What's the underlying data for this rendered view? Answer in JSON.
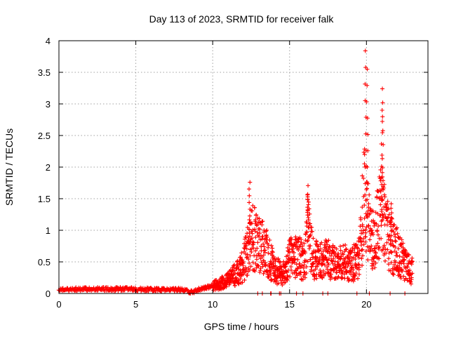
{
  "chart_data": {
    "type": "scatter",
    "title": "Day 113 of 2023, SRMTID for receiver falk",
    "xlabel": "GPS time / hours",
    "ylabel": "SRMTID / TECUs",
    "xlim": [
      0,
      24
    ],
    "ylim": [
      0,
      4
    ],
    "xticks": [
      0,
      5,
      10,
      15,
      20
    ],
    "yticks": [
      0,
      0.5,
      1,
      1.5,
      2,
      2.5,
      3,
      3.5,
      4
    ],
    "xtick_labels": [
      "0",
      "5",
      "10",
      "15",
      "20"
    ],
    "ytick_labels": [
      "0",
      "0.5",
      "1",
      "1.5",
      "2",
      "2.5",
      "3",
      "3.5",
      "4"
    ],
    "grid": true,
    "marker": "+",
    "color": "#ff0000",
    "envelope": [
      [
        0,
        0.06
      ],
      [
        1,
        0.07
      ],
      [
        2,
        0.07
      ],
      [
        3,
        0.07
      ],
      [
        4,
        0.07
      ],
      [
        5,
        0.07
      ],
      [
        6,
        0.06
      ],
      [
        7,
        0.06
      ],
      [
        8,
        0.06
      ],
      [
        8.7,
        0.02
      ],
      [
        9,
        0.06
      ],
      [
        9.5,
        0.09
      ],
      [
        10,
        0.12
      ],
      [
        10.5,
        0.15
      ],
      [
        11,
        0.22
      ],
      [
        11.5,
        0.3
      ],
      [
        12,
        0.45
      ],
      [
        12.3,
        0.75
      ],
      [
        12.6,
        0.9
      ],
      [
        13,
        0.8
      ],
      [
        13.5,
        0.65
      ],
      [
        14,
        0.4
      ],
      [
        14.5,
        0.3
      ],
      [
        15,
        0.55
      ],
      [
        15.5,
        0.6
      ],
      [
        16,
        0.5
      ],
      [
        16.2,
        1.2
      ],
      [
        16.5,
        0.55
      ],
      [
        17,
        0.5
      ],
      [
        17.5,
        0.55
      ],
      [
        18,
        0.45
      ],
      [
        18.5,
        0.5
      ],
      [
        19,
        0.45
      ],
      [
        19.5,
        0.55
      ],
      [
        19.9,
        1.6
      ],
      [
        20.1,
        1.1
      ],
      [
        20.5,
        0.9
      ],
      [
        21,
        1.3
      ],
      [
        21.5,
        0.8
      ],
      [
        22,
        0.65
      ],
      [
        22.5,
        0.45
      ],
      [
        23,
        0.35
      ]
    ],
    "spikes": [
      {
        "x": 12.4,
        "y": 1.76
      },
      {
        "x": 16.2,
        "y": 1.57
      },
      {
        "x": 19.95,
        "y": 3.84
      },
      {
        "x": 20.05,
        "y": 3.55
      },
      {
        "x": 21.05,
        "y": 3.24
      },
      {
        "x": 21.0,
        "y": 2.9
      },
      {
        "x": 21.6,
        "y": 1.42
      }
    ]
  }
}
